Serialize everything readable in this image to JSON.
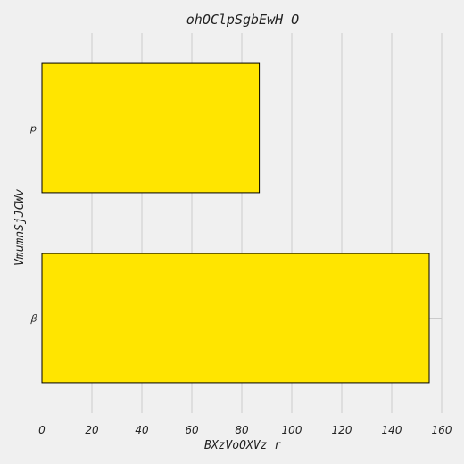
{
  "chart_data": {
    "type": "bar",
    "orientation": "horizontal",
    "title": "ohOClpSgbEwH O",
    "xlabel": "BXzVoOXVz r",
    "ylabel": "VmumnSjJCWv",
    "categories": [
      "ꞵ",
      "p"
    ],
    "values": [
      155,
      87
    ],
    "xlim": [
      0,
      160
    ],
    "xticks": [
      0,
      20,
      40,
      60,
      80,
      100,
      120,
      140,
      160
    ],
    "grid": true,
    "bar_color": "#ffe500",
    "edge_color": "#000000",
    "background": "#f0f0f0",
    "grid_color": "#cbcbcb"
  }
}
